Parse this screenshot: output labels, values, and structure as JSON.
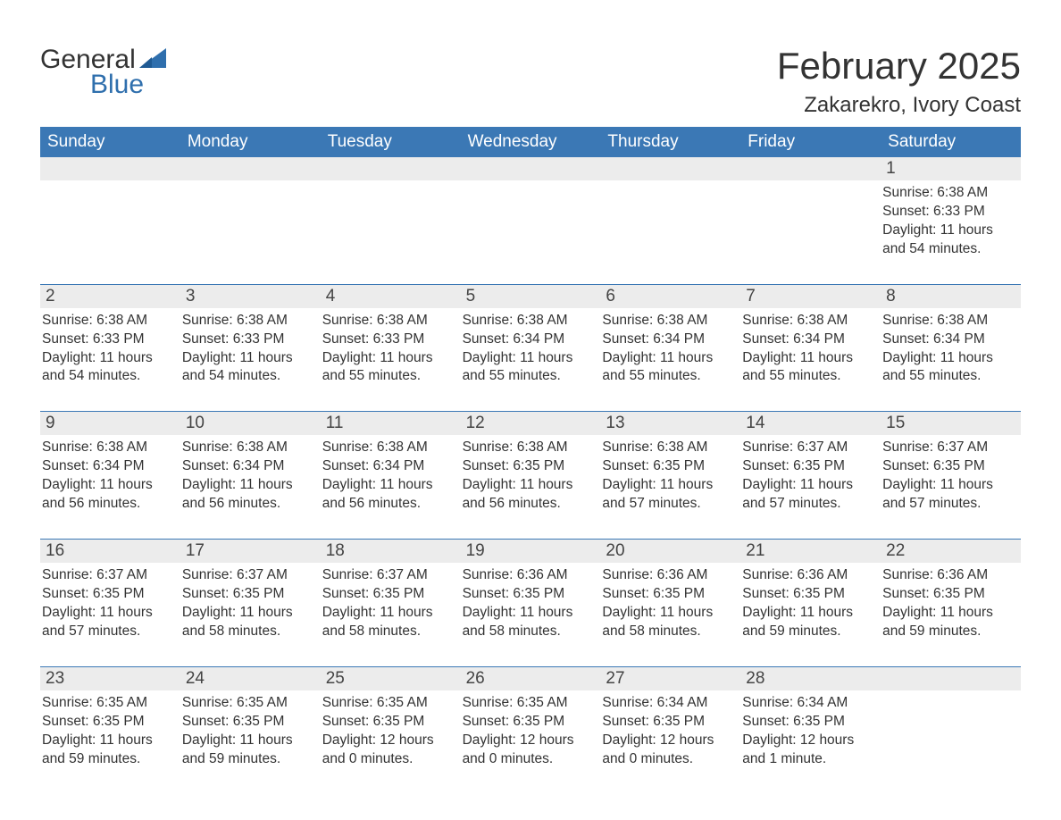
{
  "logo": {
    "general": "General",
    "blue": "Blue"
  },
  "title": "February 2025",
  "location": "Zakarekro, Ivory Coast",
  "colors": {
    "header_bg": "#3b78b5",
    "header_text": "#ffffff",
    "daynum_bg": "#ececec",
    "body_text": "#333333",
    "logo_blue": "#2f6fad",
    "rule": "#3b78b5",
    "page_bg": "#ffffff"
  },
  "day_headers": [
    "Sunday",
    "Monday",
    "Tuesday",
    "Wednesday",
    "Thursday",
    "Friday",
    "Saturday"
  ],
  "weeks": [
    [
      {
        "n": "",
        "sunrise": "",
        "sunset": "",
        "daylight": ""
      },
      {
        "n": "",
        "sunrise": "",
        "sunset": "",
        "daylight": ""
      },
      {
        "n": "",
        "sunrise": "",
        "sunset": "",
        "daylight": ""
      },
      {
        "n": "",
        "sunrise": "",
        "sunset": "",
        "daylight": ""
      },
      {
        "n": "",
        "sunrise": "",
        "sunset": "",
        "daylight": ""
      },
      {
        "n": "",
        "sunrise": "",
        "sunset": "",
        "daylight": ""
      },
      {
        "n": "1",
        "sunrise": "Sunrise: 6:38 AM",
        "sunset": "Sunset: 6:33 PM",
        "daylight": "Daylight: 11 hours and 54 minutes."
      }
    ],
    [
      {
        "n": "2",
        "sunrise": "Sunrise: 6:38 AM",
        "sunset": "Sunset: 6:33 PM",
        "daylight": "Daylight: 11 hours and 54 minutes."
      },
      {
        "n": "3",
        "sunrise": "Sunrise: 6:38 AM",
        "sunset": "Sunset: 6:33 PM",
        "daylight": "Daylight: 11 hours and 54 minutes."
      },
      {
        "n": "4",
        "sunrise": "Sunrise: 6:38 AM",
        "sunset": "Sunset: 6:33 PM",
        "daylight": "Daylight: 11 hours and 55 minutes."
      },
      {
        "n": "5",
        "sunrise": "Sunrise: 6:38 AM",
        "sunset": "Sunset: 6:34 PM",
        "daylight": "Daylight: 11 hours and 55 minutes."
      },
      {
        "n": "6",
        "sunrise": "Sunrise: 6:38 AM",
        "sunset": "Sunset: 6:34 PM",
        "daylight": "Daylight: 11 hours and 55 minutes."
      },
      {
        "n": "7",
        "sunrise": "Sunrise: 6:38 AM",
        "sunset": "Sunset: 6:34 PM",
        "daylight": "Daylight: 11 hours and 55 minutes."
      },
      {
        "n": "8",
        "sunrise": "Sunrise: 6:38 AM",
        "sunset": "Sunset: 6:34 PM",
        "daylight": "Daylight: 11 hours and 55 minutes."
      }
    ],
    [
      {
        "n": "9",
        "sunrise": "Sunrise: 6:38 AM",
        "sunset": "Sunset: 6:34 PM",
        "daylight": "Daylight: 11 hours and 56 minutes."
      },
      {
        "n": "10",
        "sunrise": "Sunrise: 6:38 AM",
        "sunset": "Sunset: 6:34 PM",
        "daylight": "Daylight: 11 hours and 56 minutes."
      },
      {
        "n": "11",
        "sunrise": "Sunrise: 6:38 AM",
        "sunset": "Sunset: 6:34 PM",
        "daylight": "Daylight: 11 hours and 56 minutes."
      },
      {
        "n": "12",
        "sunrise": "Sunrise: 6:38 AM",
        "sunset": "Sunset: 6:35 PM",
        "daylight": "Daylight: 11 hours and 56 minutes."
      },
      {
        "n": "13",
        "sunrise": "Sunrise: 6:38 AM",
        "sunset": "Sunset: 6:35 PM",
        "daylight": "Daylight: 11 hours and 57 minutes."
      },
      {
        "n": "14",
        "sunrise": "Sunrise: 6:37 AM",
        "sunset": "Sunset: 6:35 PM",
        "daylight": "Daylight: 11 hours and 57 minutes."
      },
      {
        "n": "15",
        "sunrise": "Sunrise: 6:37 AM",
        "sunset": "Sunset: 6:35 PM",
        "daylight": "Daylight: 11 hours and 57 minutes."
      }
    ],
    [
      {
        "n": "16",
        "sunrise": "Sunrise: 6:37 AM",
        "sunset": "Sunset: 6:35 PM",
        "daylight": "Daylight: 11 hours and 57 minutes."
      },
      {
        "n": "17",
        "sunrise": "Sunrise: 6:37 AM",
        "sunset": "Sunset: 6:35 PM",
        "daylight": "Daylight: 11 hours and 58 minutes."
      },
      {
        "n": "18",
        "sunrise": "Sunrise: 6:37 AM",
        "sunset": "Sunset: 6:35 PM",
        "daylight": "Daylight: 11 hours and 58 minutes."
      },
      {
        "n": "19",
        "sunrise": "Sunrise: 6:36 AM",
        "sunset": "Sunset: 6:35 PM",
        "daylight": "Daylight: 11 hours and 58 minutes."
      },
      {
        "n": "20",
        "sunrise": "Sunrise: 6:36 AM",
        "sunset": "Sunset: 6:35 PM",
        "daylight": "Daylight: 11 hours and 58 minutes."
      },
      {
        "n": "21",
        "sunrise": "Sunrise: 6:36 AM",
        "sunset": "Sunset: 6:35 PM",
        "daylight": "Daylight: 11 hours and 59 minutes."
      },
      {
        "n": "22",
        "sunrise": "Sunrise: 6:36 AM",
        "sunset": "Sunset: 6:35 PM",
        "daylight": "Daylight: 11 hours and 59 minutes."
      }
    ],
    [
      {
        "n": "23",
        "sunrise": "Sunrise: 6:35 AM",
        "sunset": "Sunset: 6:35 PM",
        "daylight": "Daylight: 11 hours and 59 minutes."
      },
      {
        "n": "24",
        "sunrise": "Sunrise: 6:35 AM",
        "sunset": "Sunset: 6:35 PM",
        "daylight": "Daylight: 11 hours and 59 minutes."
      },
      {
        "n": "25",
        "sunrise": "Sunrise: 6:35 AM",
        "sunset": "Sunset: 6:35 PM",
        "daylight": "Daylight: 12 hours and 0 minutes."
      },
      {
        "n": "26",
        "sunrise": "Sunrise: 6:35 AM",
        "sunset": "Sunset: 6:35 PM",
        "daylight": "Daylight: 12 hours and 0 minutes."
      },
      {
        "n": "27",
        "sunrise": "Sunrise: 6:34 AM",
        "sunset": "Sunset: 6:35 PM",
        "daylight": "Daylight: 12 hours and 0 minutes."
      },
      {
        "n": "28",
        "sunrise": "Sunrise: 6:34 AM",
        "sunset": "Sunset: 6:35 PM",
        "daylight": "Daylight: 12 hours and 1 minute."
      },
      {
        "n": "",
        "sunrise": "",
        "sunset": "",
        "daylight": ""
      }
    ]
  ]
}
